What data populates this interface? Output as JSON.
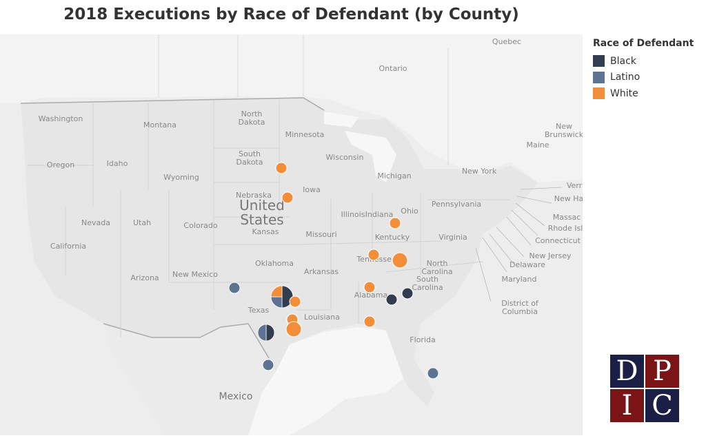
{
  "title": "2018 Executions by Race of Defendant (by County)",
  "legend": {
    "title": "Race of Defendant",
    "items": [
      {
        "label": "Black",
        "color": "#323d4f"
      },
      {
        "label": "Latino",
        "color": "#5d7391"
      },
      {
        "label": "White",
        "color": "#f28e3a"
      }
    ]
  },
  "map_labels": {
    "quebec": "Quebec",
    "ontario": "Ontario",
    "washington": "Washington",
    "montana": "Montana",
    "north_dakota": "North Dakota",
    "minnesota": "Minnesota",
    "new_brunswick": "New Brunswick",
    "maine": "Maine",
    "south_dakota": "South Dakota",
    "wisconsin": "Wisconsin",
    "michigan": "Michigan",
    "oregon": "Oregon",
    "idaho": "Idaho",
    "wyoming": "Wyoming",
    "new_york": "New York",
    "iowa": "Iowa",
    "nebraska": "Nebraska",
    "united_states": "United States",
    "illinois": "Illinois",
    "indiana": "Indiana",
    "ohio": "Ohio",
    "pennsylvania": "Pennsylvania",
    "nevada": "Nevada",
    "utah": "Utah",
    "colorado": "Colorado",
    "kansas": "Kansas",
    "missouri": "Missouri",
    "california": "California",
    "kentucky": "Kentucky",
    "virginia": "Virginia",
    "oklahoma": "Oklahoma",
    "tennessee": "Tennessee",
    "north_carolina": "North Carolina",
    "arizona": "Arizona",
    "new_mexico": "New Mexico",
    "arkansas": "Arkansas",
    "south_carolina": "South Carolina",
    "alabama": "Alabama",
    "texas": "Texas",
    "louisiana": "Louisiana",
    "florida": "Florida",
    "mexico": "Mexico",
    "vermont": "Verr",
    "new_hampshire": "New Ha",
    "massachusetts": "Massac",
    "rhode_island": "Rhode Isl",
    "connecticut": "Connecticut",
    "new_jersey": "New Jersey",
    "delaware": "Delaware",
    "maryland": "Maryland",
    "district_of_columbia": "District of Columbia"
  },
  "executions": [
    {
      "place": "South Dakota",
      "shares": {
        "White": 1
      }
    },
    {
      "place": "Nebraska",
      "shares": {
        "White": 1
      }
    },
    {
      "place": "Ohio",
      "shares": {
        "White": 1
      }
    },
    {
      "place": "Tennessee West",
      "shares": {
        "White": 1
      }
    },
    {
      "place": "Tennessee East",
      "shares": {
        "White": 1
      }
    },
    {
      "place": "Alabama West",
      "shares": {
        "White": 1
      }
    },
    {
      "place": "Alabama Central",
      "shares": {
        "Black": 1
      }
    },
    {
      "place": "Georgia",
      "shares": {
        "Black": 1
      }
    },
    {
      "place": "Alabama Gulf Coast",
      "shares": {
        "White": 1
      }
    },
    {
      "place": "Texas West",
      "shares": {
        "Latino": 1
      }
    },
    {
      "place": "Texas Dallas",
      "shares": {
        "Black": 0.5,
        "Latino": 0.25,
        "White": 0.25
      }
    },
    {
      "place": "Texas East",
      "shares": {
        "White": 1
      }
    },
    {
      "place": "Texas Central",
      "shares": {
        "White": 1
      }
    },
    {
      "place": "Texas Houston",
      "shares": {
        "White": 1
      }
    },
    {
      "place": "Texas San Antonio",
      "shares": {
        "Black": 0.5,
        "Latino": 0.5
      }
    },
    {
      "place": "Texas South",
      "shares": {
        "Latino": 1
      }
    },
    {
      "place": "Florida",
      "shares": {
        "Latino": 1
      }
    }
  ],
  "logo": {
    "letters": [
      "D",
      "P",
      "I",
      "C"
    ]
  }
}
